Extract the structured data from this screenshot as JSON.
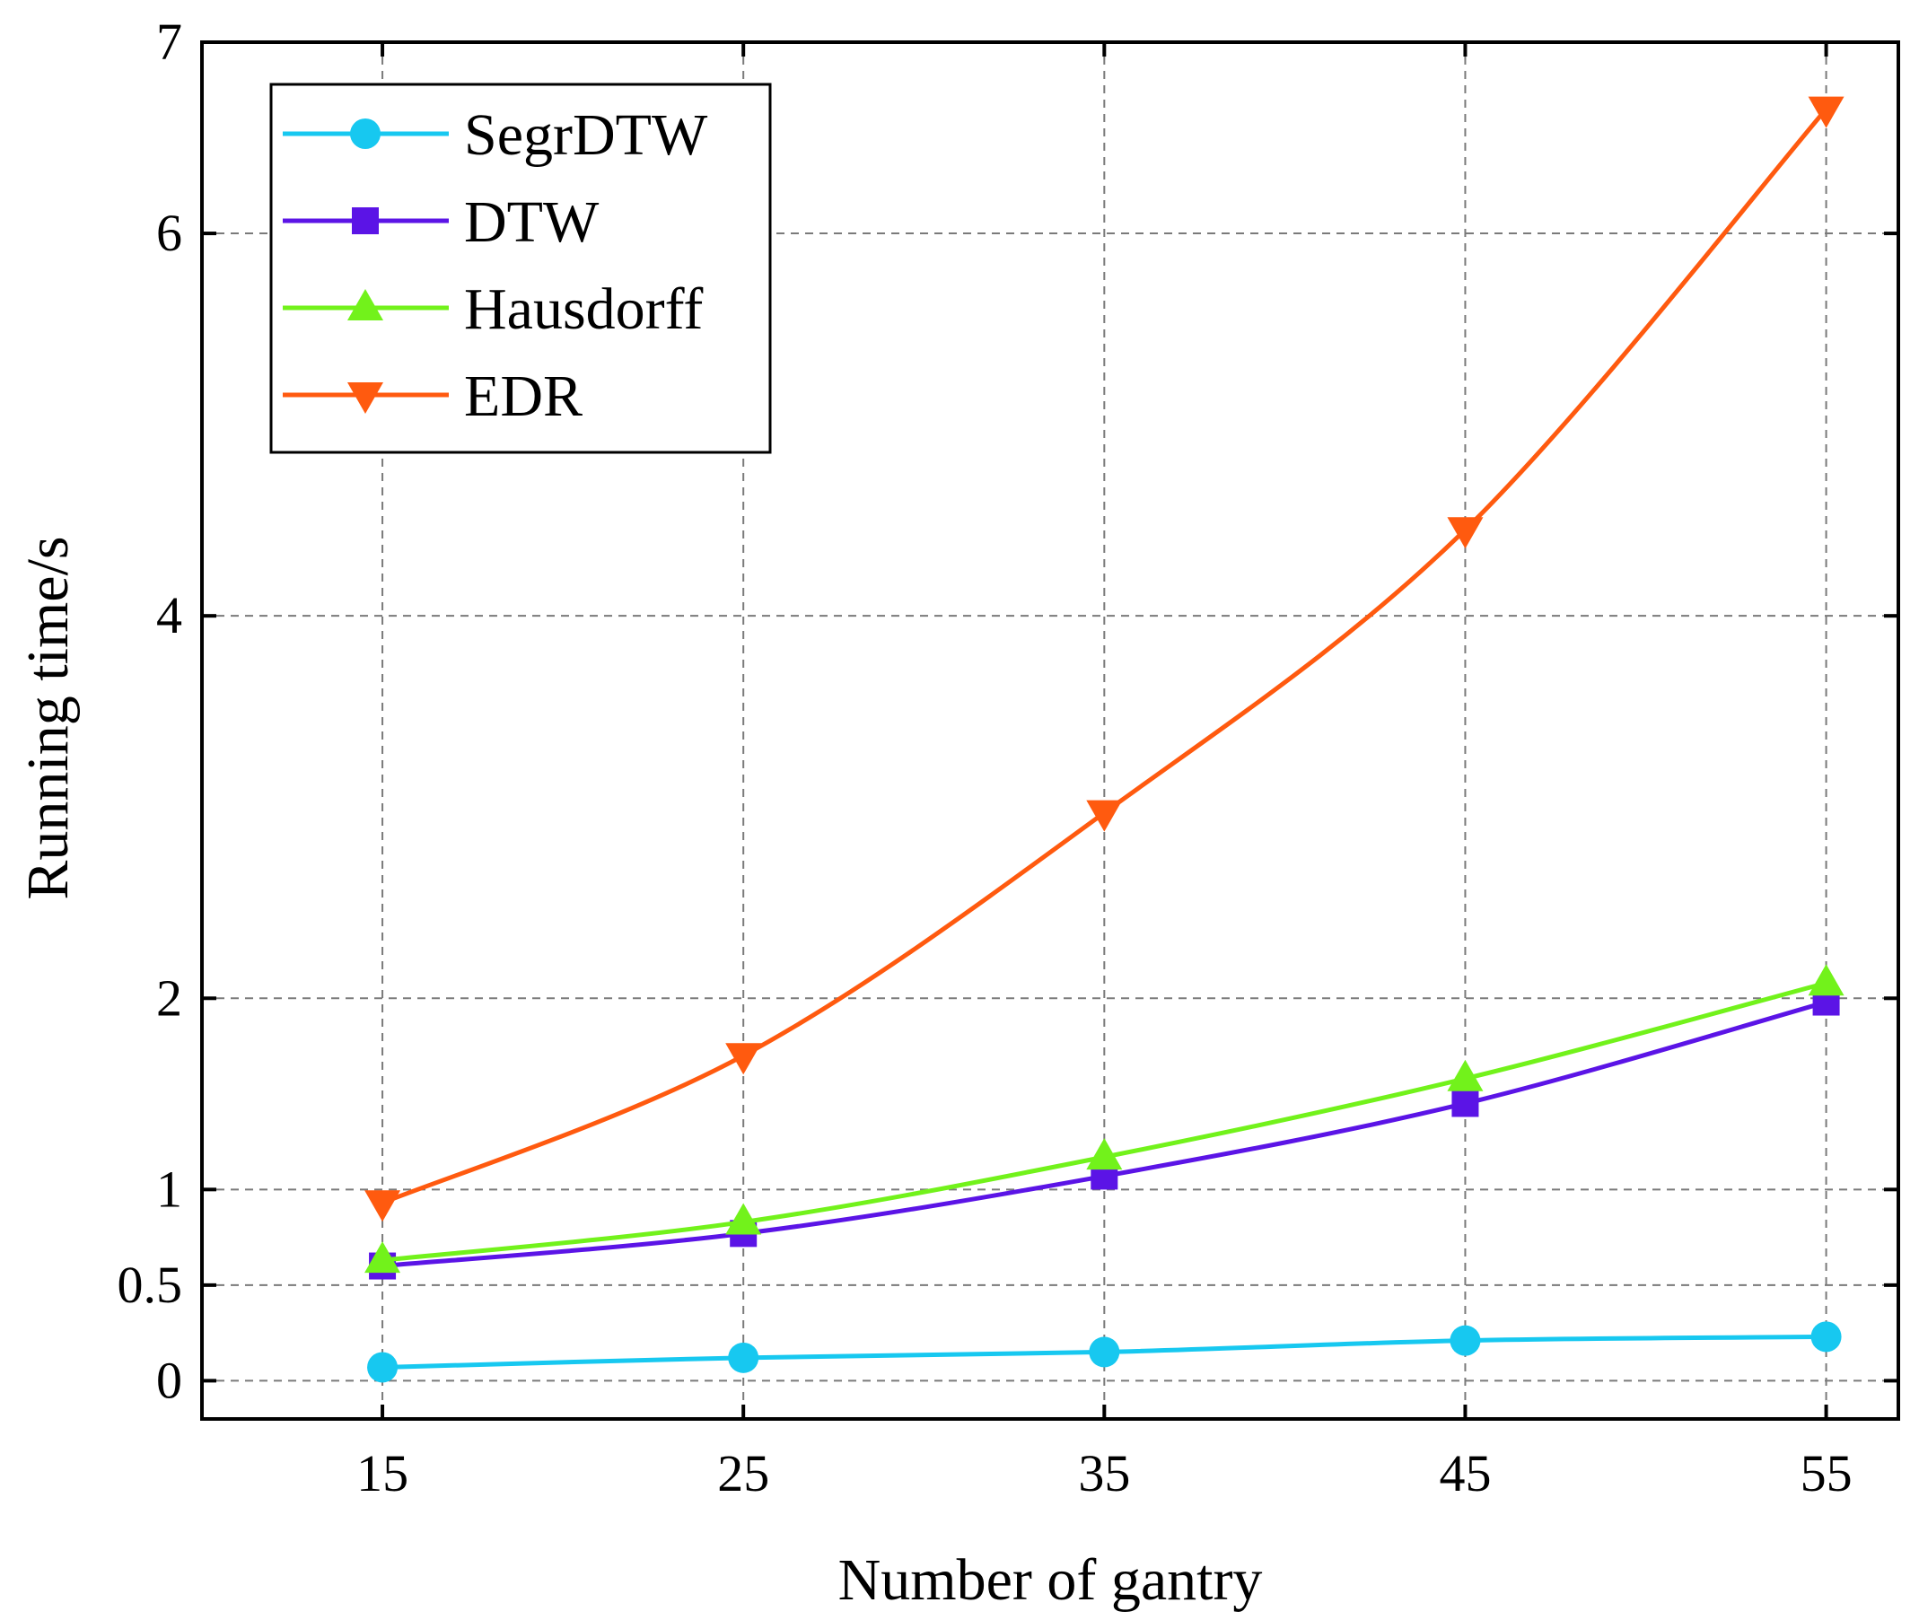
{
  "chart_data": {
    "type": "line",
    "title": "",
    "xlabel": "Number of gantry",
    "ylabel": "Running time/s",
    "x": [
      15,
      25,
      35,
      45,
      55
    ],
    "xlim": [
      10,
      57
    ],
    "ylim": [
      -0.2,
      7
    ],
    "x_ticks": [
      "15",
      "25",
      "35",
      "45",
      "55"
    ],
    "y_tick_values": [
      0,
      0.5,
      1,
      2,
      4,
      6,
      7
    ],
    "y_ticks": [
      "0",
      "0.5",
      "1",
      "2",
      "4",
      "6",
      "7"
    ],
    "grid": true,
    "legend_position": "top-left",
    "series": [
      {
        "name": "SegrDTW",
        "marker": "circle",
        "color": "#17C8F0",
        "values": [
          0.07,
          0.12,
          0.15,
          0.21,
          0.23
        ]
      },
      {
        "name": "DTW",
        "marker": "square",
        "color": "#5B14E6",
        "values": [
          0.6,
          0.77,
          1.07,
          1.45,
          1.98
        ]
      },
      {
        "name": "Hausdorff",
        "marker": "triangle-up",
        "color": "#72F21B",
        "values": [
          0.63,
          0.83,
          1.17,
          1.58,
          2.08
        ]
      },
      {
        "name": "EDR",
        "marker": "triangle-down",
        "color": "#FF5A0F",
        "values": [
          0.93,
          1.7,
          2.97,
          4.45,
          6.65
        ]
      }
    ]
  }
}
